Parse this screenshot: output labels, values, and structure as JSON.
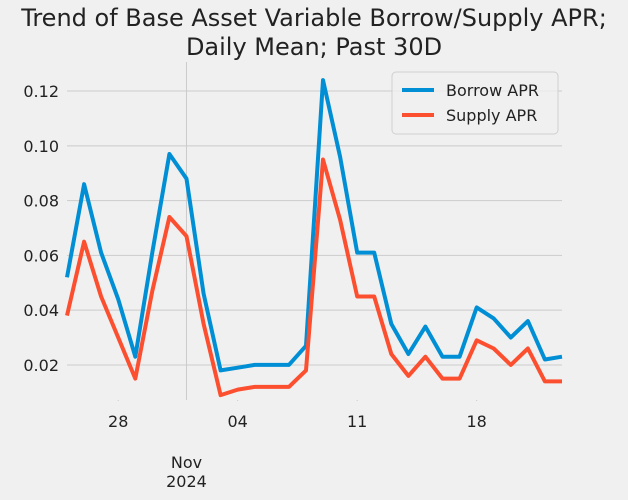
{
  "chart_data": {
    "type": "line",
    "title": "Trend of Base Asset Variable Borrow/Supply APR;\nDaily Mean; Past 30D",
    "x": [
      "2024-10-25",
      "2024-10-26",
      "2024-10-27",
      "2024-10-28",
      "2024-10-29",
      "2024-10-30",
      "2024-10-31",
      "2024-11-01",
      "2024-11-02",
      "2024-11-03",
      "2024-11-04",
      "2024-11-05",
      "2024-11-06",
      "2024-11-07",
      "2024-11-08",
      "2024-11-09",
      "2024-11-10",
      "2024-11-11",
      "2024-11-12",
      "2024-11-13",
      "2024-11-14",
      "2024-11-15",
      "2024-11-16",
      "2024-11-17",
      "2024-11-18",
      "2024-11-19",
      "2024-11-20",
      "2024-11-21",
      "2024-11-22",
      "2024-11-23"
    ],
    "series": [
      {
        "name": "Borrow APR",
        "color": "#008fd5",
        "values": [
          0.052,
          0.086,
          0.061,
          0.044,
          0.023,
          0.061,
          0.097,
          0.088,
          0.046,
          0.018,
          0.019,
          0.02,
          0.02,
          0.02,
          0.027,
          0.124,
          0.096,
          0.061,
          0.061,
          0.035,
          0.024,
          0.034,
          0.023,
          0.023,
          0.041,
          0.037,
          0.03,
          0.036,
          0.022,
          0.023
        ]
      },
      {
        "name": "Supply APR",
        "color": "#fc4f30",
        "values": [
          0.038,
          0.065,
          0.045,
          0.03,
          0.015,
          0.047,
          0.074,
          0.067,
          0.035,
          0.009,
          0.011,
          0.012,
          0.012,
          0.012,
          0.018,
          0.095,
          0.073,
          0.045,
          0.045,
          0.024,
          0.016,
          0.023,
          0.015,
          0.015,
          0.029,
          0.026,
          0.02,
          0.026,
          0.014,
          0.014
        ]
      }
    ],
    "xlim": [
      "2024-10-25",
      "2024-11-23"
    ],
    "xticks": [
      {
        "value": "2024-10-28",
        "label": "28"
      },
      {
        "value": "2024-11-04",
        "label": "04"
      },
      {
        "value": "2024-11-11",
        "label": "11"
      },
      {
        "value": "2024-11-18",
        "label": "18"
      }
    ],
    "xminorticks": [
      {
        "value": "2024-11-01",
        "label": "Nov\n2024"
      }
    ],
    "ylim": [
      0.0072,
      0.1306
    ],
    "yticks": [
      {
        "value": 0.02,
        "label": "0.02"
      },
      {
        "value": 0.04,
        "label": "0.04"
      },
      {
        "value": 0.06,
        "label": "0.06"
      },
      {
        "value": 0.08,
        "label": "0.08"
      },
      {
        "value": 0.1,
        "label": "0.10"
      },
      {
        "value": 0.12,
        "label": "0.12"
      }
    ],
    "grid": {
      "y": true,
      "x_minor": true
    },
    "legend": "upper right"
  }
}
